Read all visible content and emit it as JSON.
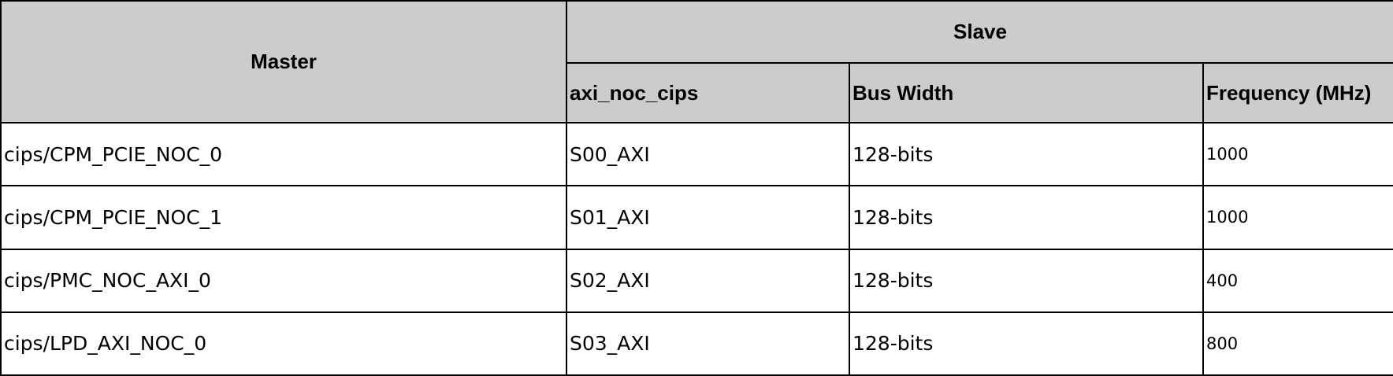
{
  "table": {
    "header": {
      "master": "Master",
      "slave": "Slave",
      "sub_columns": [
        "axi_noc_cips",
        "Bus Width",
        "Frequency (MHz)"
      ]
    },
    "rows": [
      {
        "master": "cips/CPM_PCIE_NOC_0",
        "axi_noc_cips": "S00_AXI",
        "bus_width": "128-bits",
        "frequency": "1000"
      },
      {
        "master": "cips/CPM_PCIE_NOC_1",
        "axi_noc_cips": "S01_AXI",
        "bus_width": "128-bits",
        "frequency": "1000"
      },
      {
        "master": "cips/PMC_NOC_AXI_0",
        "axi_noc_cips": "S02_AXI",
        "bus_width": "128-bits",
        "frequency": "400"
      },
      {
        "master": "cips/LPD_AXI_NOC_0",
        "axi_noc_cips": "S03_AXI",
        "bus_width": "128-bits",
        "frequency": "800"
      }
    ]
  }
}
